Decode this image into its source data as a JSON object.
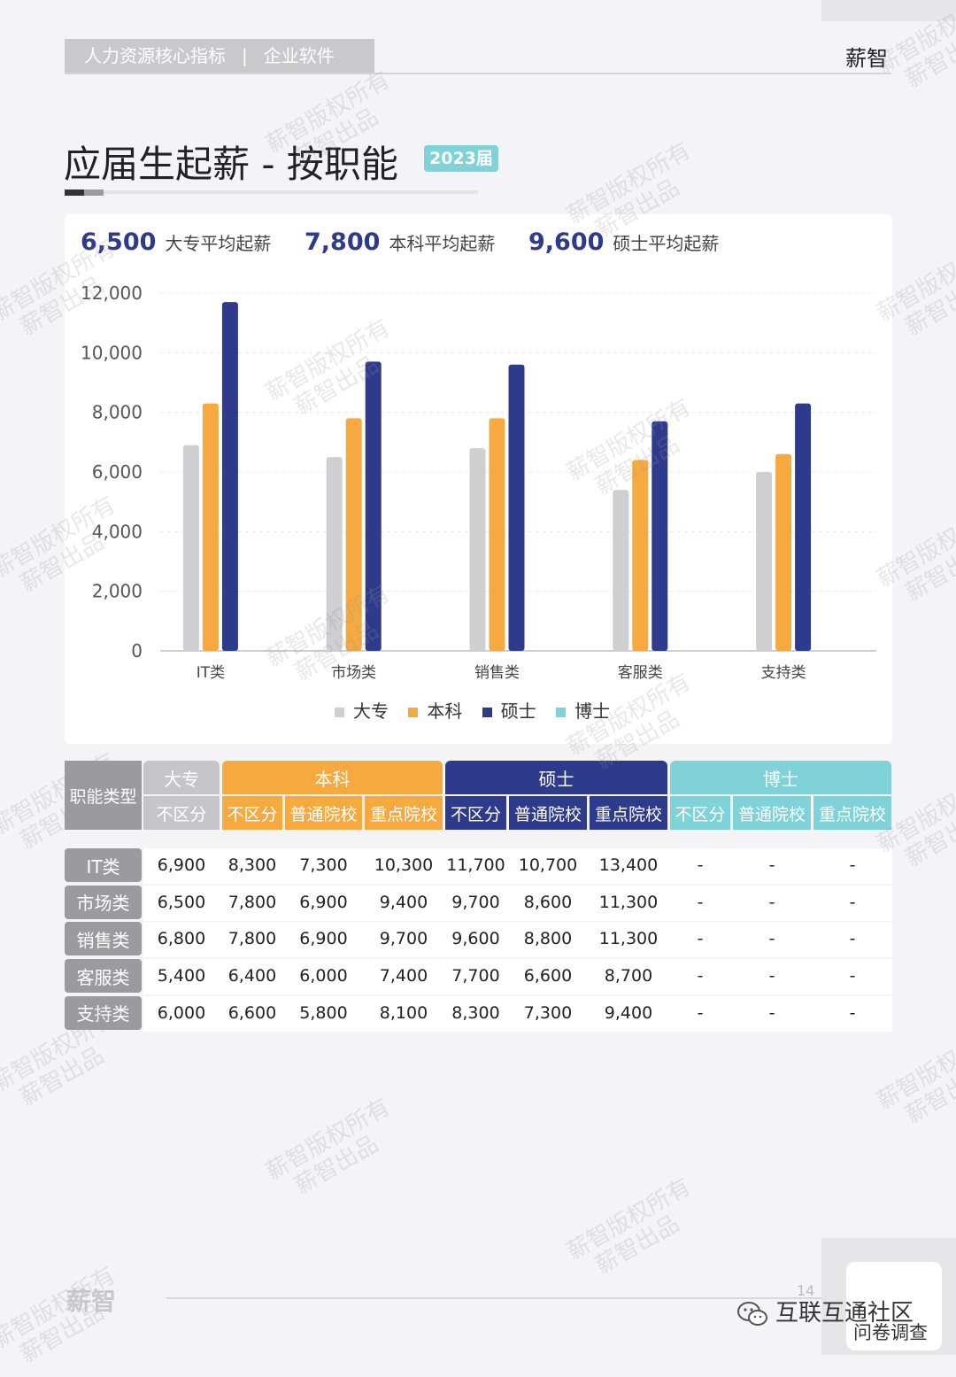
{
  "header": {
    "category": "人力资源核心指标",
    "separator": "|",
    "industry": "企业软件",
    "brand": "薪智"
  },
  "title": "应届生起薪 - 按职能",
  "year_badge": "2023届",
  "colors": {
    "dazhuan": "#cfcfd2",
    "benke": "#f5a93e",
    "shuoshi": "#2e3a8c",
    "boshi": "#7fd2d8",
    "header_gray": "#9b9b9d"
  },
  "stats": [
    {
      "value": "6,500",
      "label": "大专平均起薪"
    },
    {
      "value": "7,800",
      "label": "本科平均起薪"
    },
    {
      "value": "9,600",
      "label": "硕士平均起薪"
    }
  ],
  "chart_data": {
    "type": "bar",
    "categories": [
      "IT类",
      "市场类",
      "销售类",
      "客服类",
      "支持类"
    ],
    "series": [
      {
        "name": "大专",
        "values": [
          6900,
          6500,
          6800,
          5400,
          6000
        ]
      },
      {
        "name": "本科",
        "values": [
          8300,
          7800,
          7800,
          6400,
          6600
        ]
      },
      {
        "name": "硕士",
        "values": [
          11700,
          9700,
          9600,
          7700,
          8300
        ]
      },
      {
        "name": "博士",
        "values": [
          null,
          null,
          null,
          null,
          null
        ]
      }
    ],
    "ylim": [
      0,
      12000
    ],
    "yticks": [
      "0",
      "2,000",
      "4,000",
      "6,000",
      "8,000",
      "10,000",
      "12,000"
    ],
    "grid": true,
    "legend": "bottom"
  },
  "table": {
    "corner": "职能类型",
    "groups": [
      "大专",
      "本科",
      "硕士",
      "博士"
    ],
    "subheaders": [
      "不区分",
      "不区分",
      "普通院校",
      "重点院校",
      "不区分",
      "普通院校",
      "重点院校",
      "不区分",
      "普通院校",
      "重点院校"
    ],
    "rows": [
      {
        "label": "IT类",
        "values": [
          "6,900",
          "8,300",
          "7,300",
          "10,300",
          "11,700",
          "10,700",
          "13,400",
          "-",
          "-",
          "-"
        ]
      },
      {
        "label": "市场类",
        "values": [
          "6,500",
          "7,800",
          "6,900",
          "9,400",
          "9,700",
          "8,600",
          "11,300",
          "-",
          "-",
          "-"
        ]
      },
      {
        "label": "销售类",
        "values": [
          "6,800",
          "7,800",
          "6,900",
          "9,700",
          "9,600",
          "8,800",
          "11,300",
          "-",
          "-",
          "-"
        ]
      },
      {
        "label": "客服类",
        "values": [
          "5,400",
          "6,400",
          "6,000",
          "7,400",
          "7,700",
          "6,600",
          "8,700",
          "-",
          "-",
          "-"
        ]
      },
      {
        "label": "支持类",
        "values": [
          "6,000",
          "6,600",
          "5,800",
          "8,100",
          "8,300",
          "7,300",
          "9,400",
          "-",
          "-",
          "-"
        ]
      }
    ]
  },
  "watermark": {
    "line1": "薪智版权所有",
    "line2": "薪智出品"
  },
  "footer": {
    "logo": "薪智",
    "page": "14",
    "wechat": "互联互通社区",
    "survey": "问卷调查"
  }
}
